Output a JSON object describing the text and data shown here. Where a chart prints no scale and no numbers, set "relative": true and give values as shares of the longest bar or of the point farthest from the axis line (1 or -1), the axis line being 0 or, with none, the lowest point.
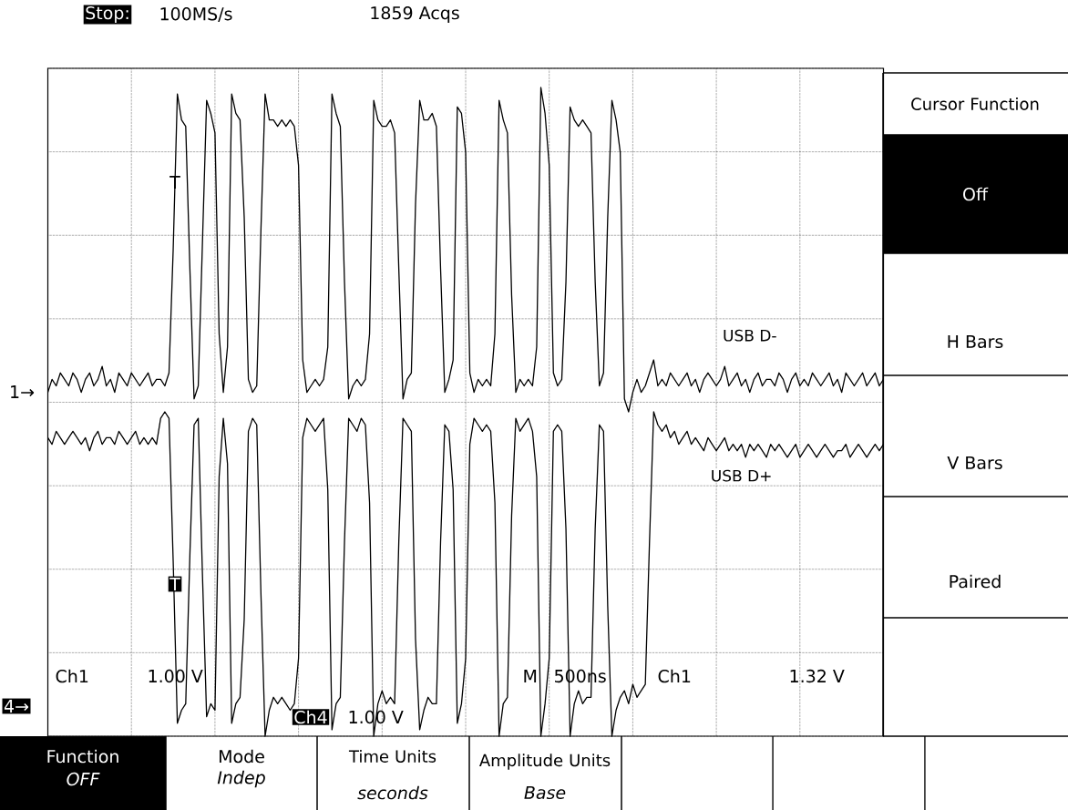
{
  "chart_data": {
    "type": "line",
    "relative": true,
    "grid": true,
    "line_style": "solid",
    "categories": [
      null,
      null,
      null,
      null,
      null,
      null,
      null,
      null,
      null,
      null,
      null,
      null,
      null,
      null,
      null,
      null,
      null,
      null,
      null,
      null,
      null,
      null,
      null,
      null,
      null,
      null,
      null,
      null,
      null,
      null,
      null,
      null,
      null,
      null,
      null,
      null,
      null,
      null,
      null,
      null,
      null,
      null,
      null,
      null,
      null,
      null,
      null,
      null,
      null,
      null,
      null,
      null,
      null,
      null,
      null,
      null,
      null,
      null,
      null,
      null,
      null,
      null,
      null,
      null,
      null,
      null,
      null,
      null,
      null,
      null,
      null,
      null,
      null,
      null,
      null,
      null,
      null,
      null,
      null,
      null,
      null,
      null,
      null,
      null,
      null,
      null,
      null,
      null,
      null,
      null,
      null,
      null,
      null,
      null,
      null,
      null,
      null,
      null,
      null,
      null,
      null,
      null,
      null,
      null,
      null,
      null,
      null,
      null,
      null,
      null,
      null,
      null,
      null,
      null,
      null,
      null,
      null,
      null,
      null,
      null,
      null,
      null,
      null,
      null,
      null,
      null,
      null,
      null,
      null,
      null,
      null,
      null,
      null,
      null,
      null,
      null,
      null,
      null,
      null,
      null,
      null,
      null,
      null,
      null,
      null,
      null,
      null,
      null,
      null,
      null,
      null,
      null,
      null,
      null,
      null,
      null,
      null,
      null,
      null,
      null,
      null,
      null,
      null,
      null,
      null,
      null,
      null,
      null,
      null,
      null,
      null,
      null,
      null,
      null,
      null,
      null,
      null,
      null,
      null,
      null,
      null,
      null,
      null,
      null,
      null,
      null,
      null,
      null,
      null,
      null,
      null,
      null,
      null,
      null,
      null,
      null,
      null,
      null,
      null,
      null,
      null
    ],
    "series": [
      {
        "name": "USB D-",
        "color": "#000000",
        "values": [
          0.53,
          0.55,
          0.54,
          0.56,
          0.55,
          0.54,
          0.56,
          0.55,
          0.53,
          0.55,
          0.56,
          0.54,
          0.55,
          0.57,
          0.54,
          0.55,
          0.53,
          0.56,
          0.55,
          0.54,
          0.56,
          0.55,
          0.54,
          0.55,
          0.56,
          0.54,
          0.55,
          0.55,
          0.54,
          0.56,
          0.75,
          0.99,
          0.95,
          0.94,
          0.72,
          0.52,
          0.54,
          0.76,
          0.98,
          0.96,
          0.93,
          0.62,
          0.53,
          0.6,
          0.99,
          0.96,
          0.95,
          0.8,
          0.55,
          0.53,
          0.54,
          0.78,
          0.99,
          0.95,
          0.95,
          0.94,
          0.95,
          0.94,
          0.95,
          0.94,
          0.88,
          0.58,
          0.53,
          0.54,
          0.55,
          0.54,
          0.55,
          0.6,
          0.99,
          0.96,
          0.94,
          0.7,
          0.52,
          0.54,
          0.55,
          0.54,
          0.55,
          0.62,
          0.98,
          0.95,
          0.94,
          0.94,
          0.95,
          0.93,
          0.72,
          0.52,
          0.55,
          0.56,
          0.82,
          0.98,
          0.95,
          0.95,
          0.96,
          0.94,
          0.72,
          0.53,
          0.55,
          0.58,
          0.97,
          0.96,
          0.9,
          0.56,
          0.53,
          0.55,
          0.54,
          0.55,
          0.54,
          0.62,
          0.98,
          0.95,
          0.93,
          0.68,
          0.53,
          0.55,
          0.54,
          0.55,
          0.54,
          0.6,
          1.0,
          0.96,
          0.88,
          0.56,
          0.54,
          0.55,
          0.7,
          0.97,
          0.95,
          0.94,
          0.95,
          0.94,
          0.93,
          0.7,
          0.54,
          0.56,
          0.8,
          0.98,
          0.95,
          0.9,
          0.52,
          0.5,
          0.53,
          0.55,
          0.53,
          0.54,
          0.56,
          0.58,
          0.54,
          0.55,
          0.54,
          0.56,
          0.55,
          0.54,
          0.55,
          0.56,
          0.54,
          0.55,
          0.53,
          0.55,
          0.56,
          0.55,
          0.54,
          0.55,
          0.57,
          0.54,
          0.55,
          0.56,
          0.54,
          0.55,
          0.53,
          0.55,
          0.56,
          0.54,
          0.55,
          0.55,
          0.54,
          0.56,
          0.55,
          0.53,
          0.55,
          0.56,
          0.54,
          0.55,
          0.54,
          0.56,
          0.55,
          0.54,
          0.55,
          0.56,
          0.54,
          0.55,
          0.53,
          0.56,
          0.55,
          0.54,
          0.55,
          0.56,
          0.54,
          0.55,
          0.56,
          0.54,
          0.55
        ]
      },
      {
        "name": "USB D+",
        "color": "#000000",
        "values": [
          0.46,
          0.45,
          0.47,
          0.46,
          0.45,
          0.46,
          0.47,
          0.46,
          0.45,
          0.46,
          0.44,
          0.46,
          0.47,
          0.45,
          0.46,
          0.46,
          0.45,
          0.47,
          0.46,
          0.45,
          0.46,
          0.47,
          0.45,
          0.46,
          0.45,
          0.46,
          0.45,
          0.49,
          0.5,
          0.49,
          0.27,
          0.02,
          0.04,
          0.05,
          0.28,
          0.48,
          0.49,
          0.25,
          0.03,
          0.05,
          0.04,
          0.4,
          0.49,
          0.42,
          0.02,
          0.05,
          0.06,
          0.18,
          0.47,
          0.49,
          0.48,
          0.22,
          0.0,
          0.04,
          0.06,
          0.05,
          0.06,
          0.05,
          0.04,
          0.05,
          0.12,
          0.46,
          0.49,
          0.48,
          0.47,
          0.48,
          0.49,
          0.38,
          0.01,
          0.05,
          0.06,
          0.3,
          0.49,
          0.48,
          0.47,
          0.49,
          0.48,
          0.36,
          0.0,
          0.05,
          0.07,
          0.05,
          0.06,
          0.05,
          0.3,
          0.49,
          0.48,
          0.47,
          0.15,
          0.01,
          0.04,
          0.06,
          0.05,
          0.05,
          0.3,
          0.48,
          0.47,
          0.38,
          0.02,
          0.05,
          0.12,
          0.45,
          0.49,
          0.48,
          0.47,
          0.48,
          0.47,
          0.36,
          0.0,
          0.05,
          0.06,
          0.34,
          0.49,
          0.47,
          0.48,
          0.49,
          0.47,
          0.4,
          0.0,
          0.05,
          0.12,
          0.47,
          0.48,
          0.47,
          0.32,
          0.0,
          0.05,
          0.07,
          0.05,
          0.06,
          0.06,
          0.32,
          0.48,
          0.47,
          0.2,
          0.0,
          0.04,
          0.06,
          0.07,
          0.05,
          0.08,
          0.06,
          0.07,
          0.08,
          0.3,
          0.5,
          0.48,
          0.47,
          0.48,
          0.46,
          0.47,
          0.45,
          0.46,
          0.47,
          0.45,
          0.46,
          0.45,
          0.44,
          0.46,
          0.45,
          0.44,
          0.45,
          0.46,
          0.44,
          0.45,
          0.44,
          0.45,
          0.43,
          0.45,
          0.44,
          0.45,
          0.44,
          0.43,
          0.45,
          0.44,
          0.45,
          0.44,
          0.43,
          0.44,
          0.45,
          0.43,
          0.44,
          0.45,
          0.44,
          0.43,
          0.44,
          0.45,
          0.44,
          0.43,
          0.44,
          0.44,
          0.45,
          0.43,
          0.44,
          0.45,
          0.44,
          0.43,
          0.44,
          0.45,
          0.44,
          0.45
        ]
      }
    ],
    "annotations": [
      "Stop:",
      "100MS/s",
      "1859 Acqs",
      "Ch1",
      "1.00 V",
      "Ch4",
      "1.00 V",
      "M",
      "500ns",
      "Ch1",
      "1.32 V",
      "1→",
      "4→",
      "T",
      "T",
      "Cursor Function",
      "Off",
      "H Bars",
      "V Bars",
      "Paired",
      "Function",
      "OFF",
      "Mode",
      "Indep",
      "Time Units",
      "seconds",
      "Amplitude Units",
      "Base"
    ]
  }
}
